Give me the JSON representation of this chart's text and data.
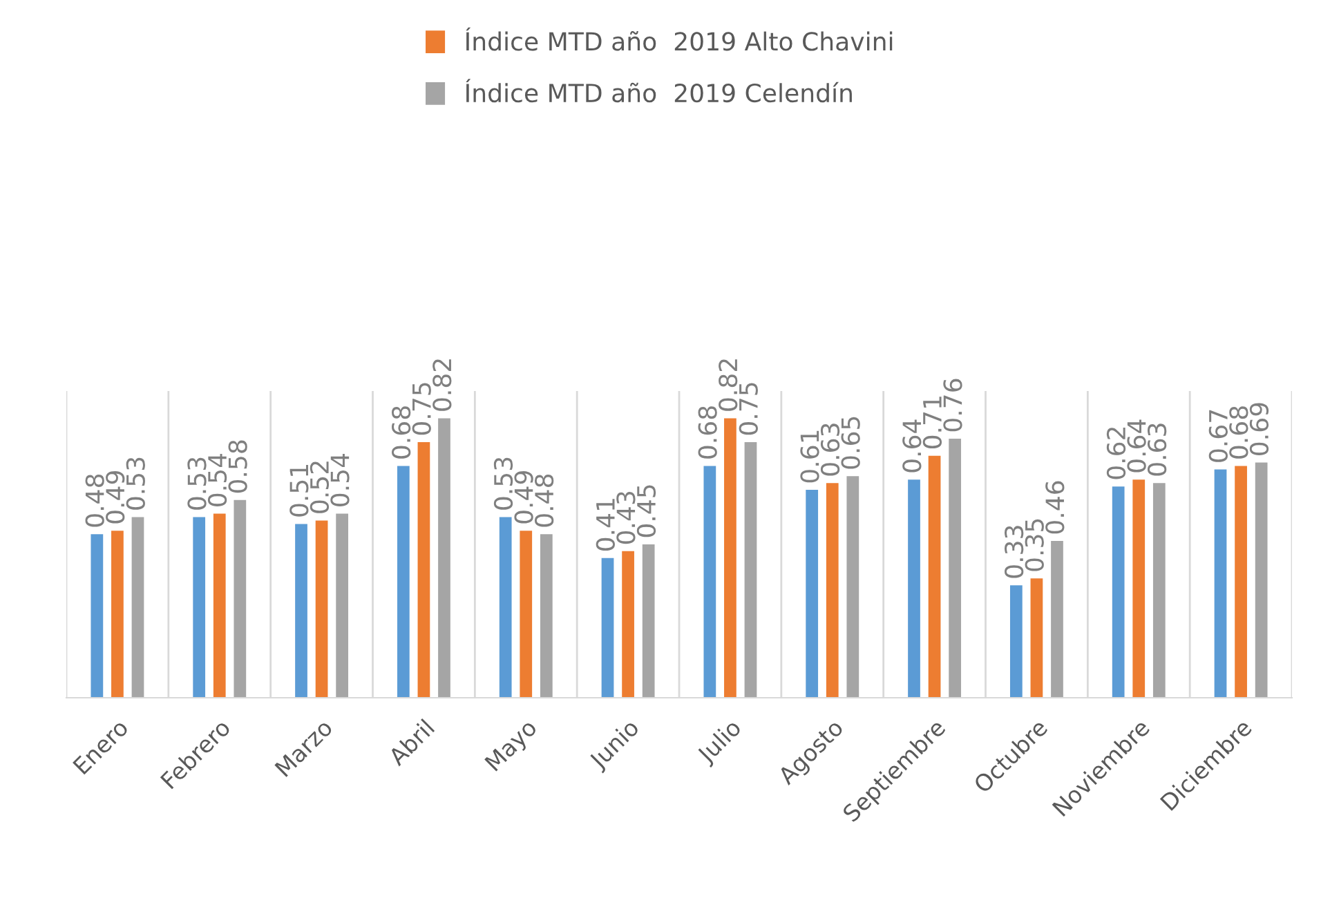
{
  "chart_data": {
    "type": "bar",
    "categories": [
      "Enero",
      "Febrero",
      "Marzo",
      "Abril",
      "Mayo",
      "Junio",
      "Julio",
      "Agosto",
      "Septiembre",
      "Octubre",
      "Noviembre",
      "Diciembre"
    ],
    "series": [
      {
        "color": "#5b9bd5",
        "values": [
          0.48,
          0.53,
          0.51,
          0.68,
          0.53,
          0.41,
          0.68,
          0.61,
          0.64,
          0.33,
          0.62,
          0.67
        ]
      },
      {
        "name": "Índice MTD año  2019 Alto Chavini",
        "color": "#ed7d31",
        "values": [
          0.49,
          0.54,
          0.52,
          0.75,
          0.49,
          0.43,
          0.82,
          0.63,
          0.71,
          0.35,
          0.64,
          0.68
        ]
      },
      {
        "name": "Índice MTD año  2019 Celendín",
        "color": "#a5a5a5",
        "values": [
          0.53,
          0.58,
          0.54,
          0.82,
          0.48,
          0.45,
          0.75,
          0.65,
          0.76,
          0.46,
          0.63,
          0.69
        ]
      }
    ],
    "ylim": [
      0,
      0.9
    ],
    "relative": false,
    "data_labels": true,
    "grid": "x",
    "legend": "top"
  }
}
